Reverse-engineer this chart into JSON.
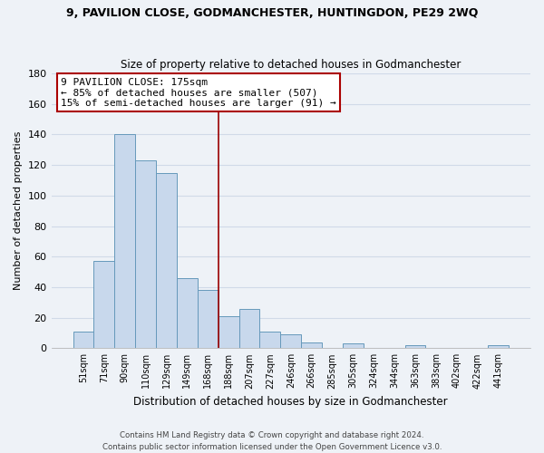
{
  "title_line1": "9, PAVILION CLOSE, GODMANCHESTER, HUNTINGDON, PE29 2WQ",
  "title_line2": "Size of property relative to detached houses in Godmanchester",
  "xlabel": "Distribution of detached houses by size in Godmanchester",
  "ylabel": "Number of detached properties",
  "bar_labels": [
    "51sqm",
    "71sqm",
    "90sqm",
    "110sqm",
    "129sqm",
    "149sqm",
    "168sqm",
    "188sqm",
    "207sqm",
    "227sqm",
    "246sqm",
    "266sqm",
    "285sqm",
    "305sqm",
    "324sqm",
    "344sqm",
    "363sqm",
    "383sqm",
    "402sqm",
    "422sqm",
    "441sqm"
  ],
  "bar_values": [
    11,
    57,
    140,
    123,
    115,
    46,
    38,
    21,
    26,
    11,
    9,
    4,
    0,
    3,
    0,
    0,
    2,
    0,
    0,
    0,
    2
  ],
  "bar_color": "#c8d8ec",
  "bar_edge_color": "#6699bb",
  "vline_color": "#990000",
  "annotation_title": "9 PAVILION CLOSE: 175sqm",
  "annotation_line1": "← 85% of detached houses are smaller (507)",
  "annotation_line2": "15% of semi-detached houses are larger (91) →",
  "annotation_box_color": "#ffffff",
  "annotation_box_edge": "#aa0000",
  "ylim": [
    0,
    180
  ],
  "yticks": [
    0,
    20,
    40,
    60,
    80,
    100,
    120,
    140,
    160,
    180
  ],
  "footer_line1": "Contains HM Land Registry data © Crown copyright and database right 2024.",
  "footer_line2": "Contains public sector information licensed under the Open Government Licence v3.0.",
  "bg_color": "#eef2f7",
  "grid_color": "#d0dae8"
}
